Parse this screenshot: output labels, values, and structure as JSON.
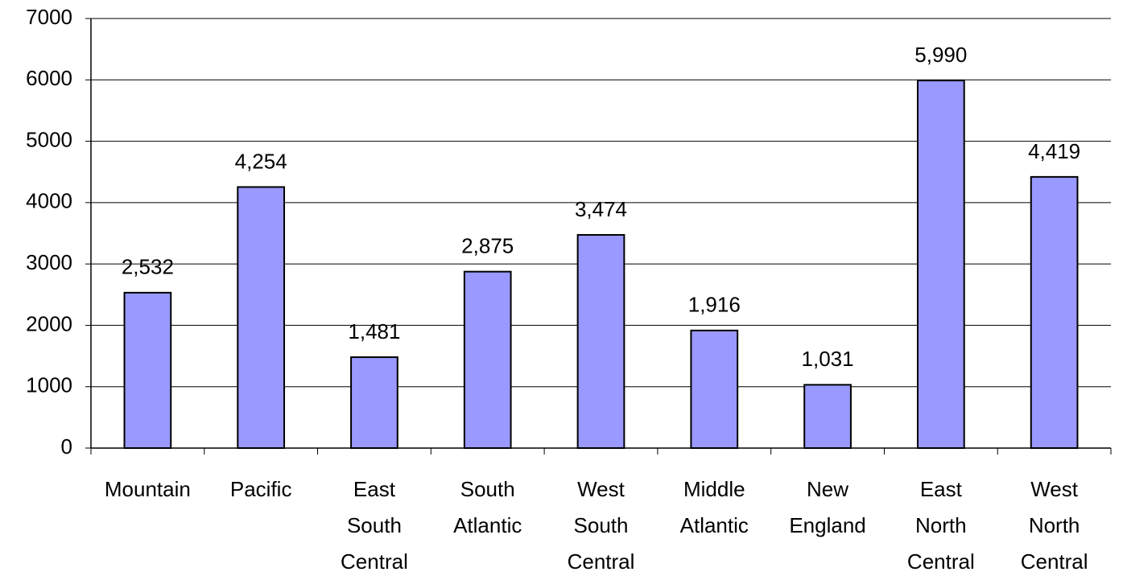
{
  "chart_data": {
    "type": "bar",
    "categories": [
      "Mountain",
      "Pacific",
      "East South Central",
      "South Atlantic",
      "West South Central",
      "Middle Atlantic",
      "New England",
      "East North Central",
      "West North Central"
    ],
    "values": [
      2532,
      4254,
      1481,
      2875,
      3474,
      1916,
      1031,
      5990,
      4419
    ],
    "value_labels": [
      "2,532",
      "4,254",
      "1,481",
      "2,875",
      "3,474",
      "1,916",
      "1,031",
      "5,990",
      "4,419"
    ],
    "color": "#9999ff",
    "ylim": [
      0,
      7000
    ],
    "yticks": [
      0,
      1000,
      2000,
      3000,
      4000,
      5000,
      6000,
      7000
    ],
    "grid": true
  }
}
